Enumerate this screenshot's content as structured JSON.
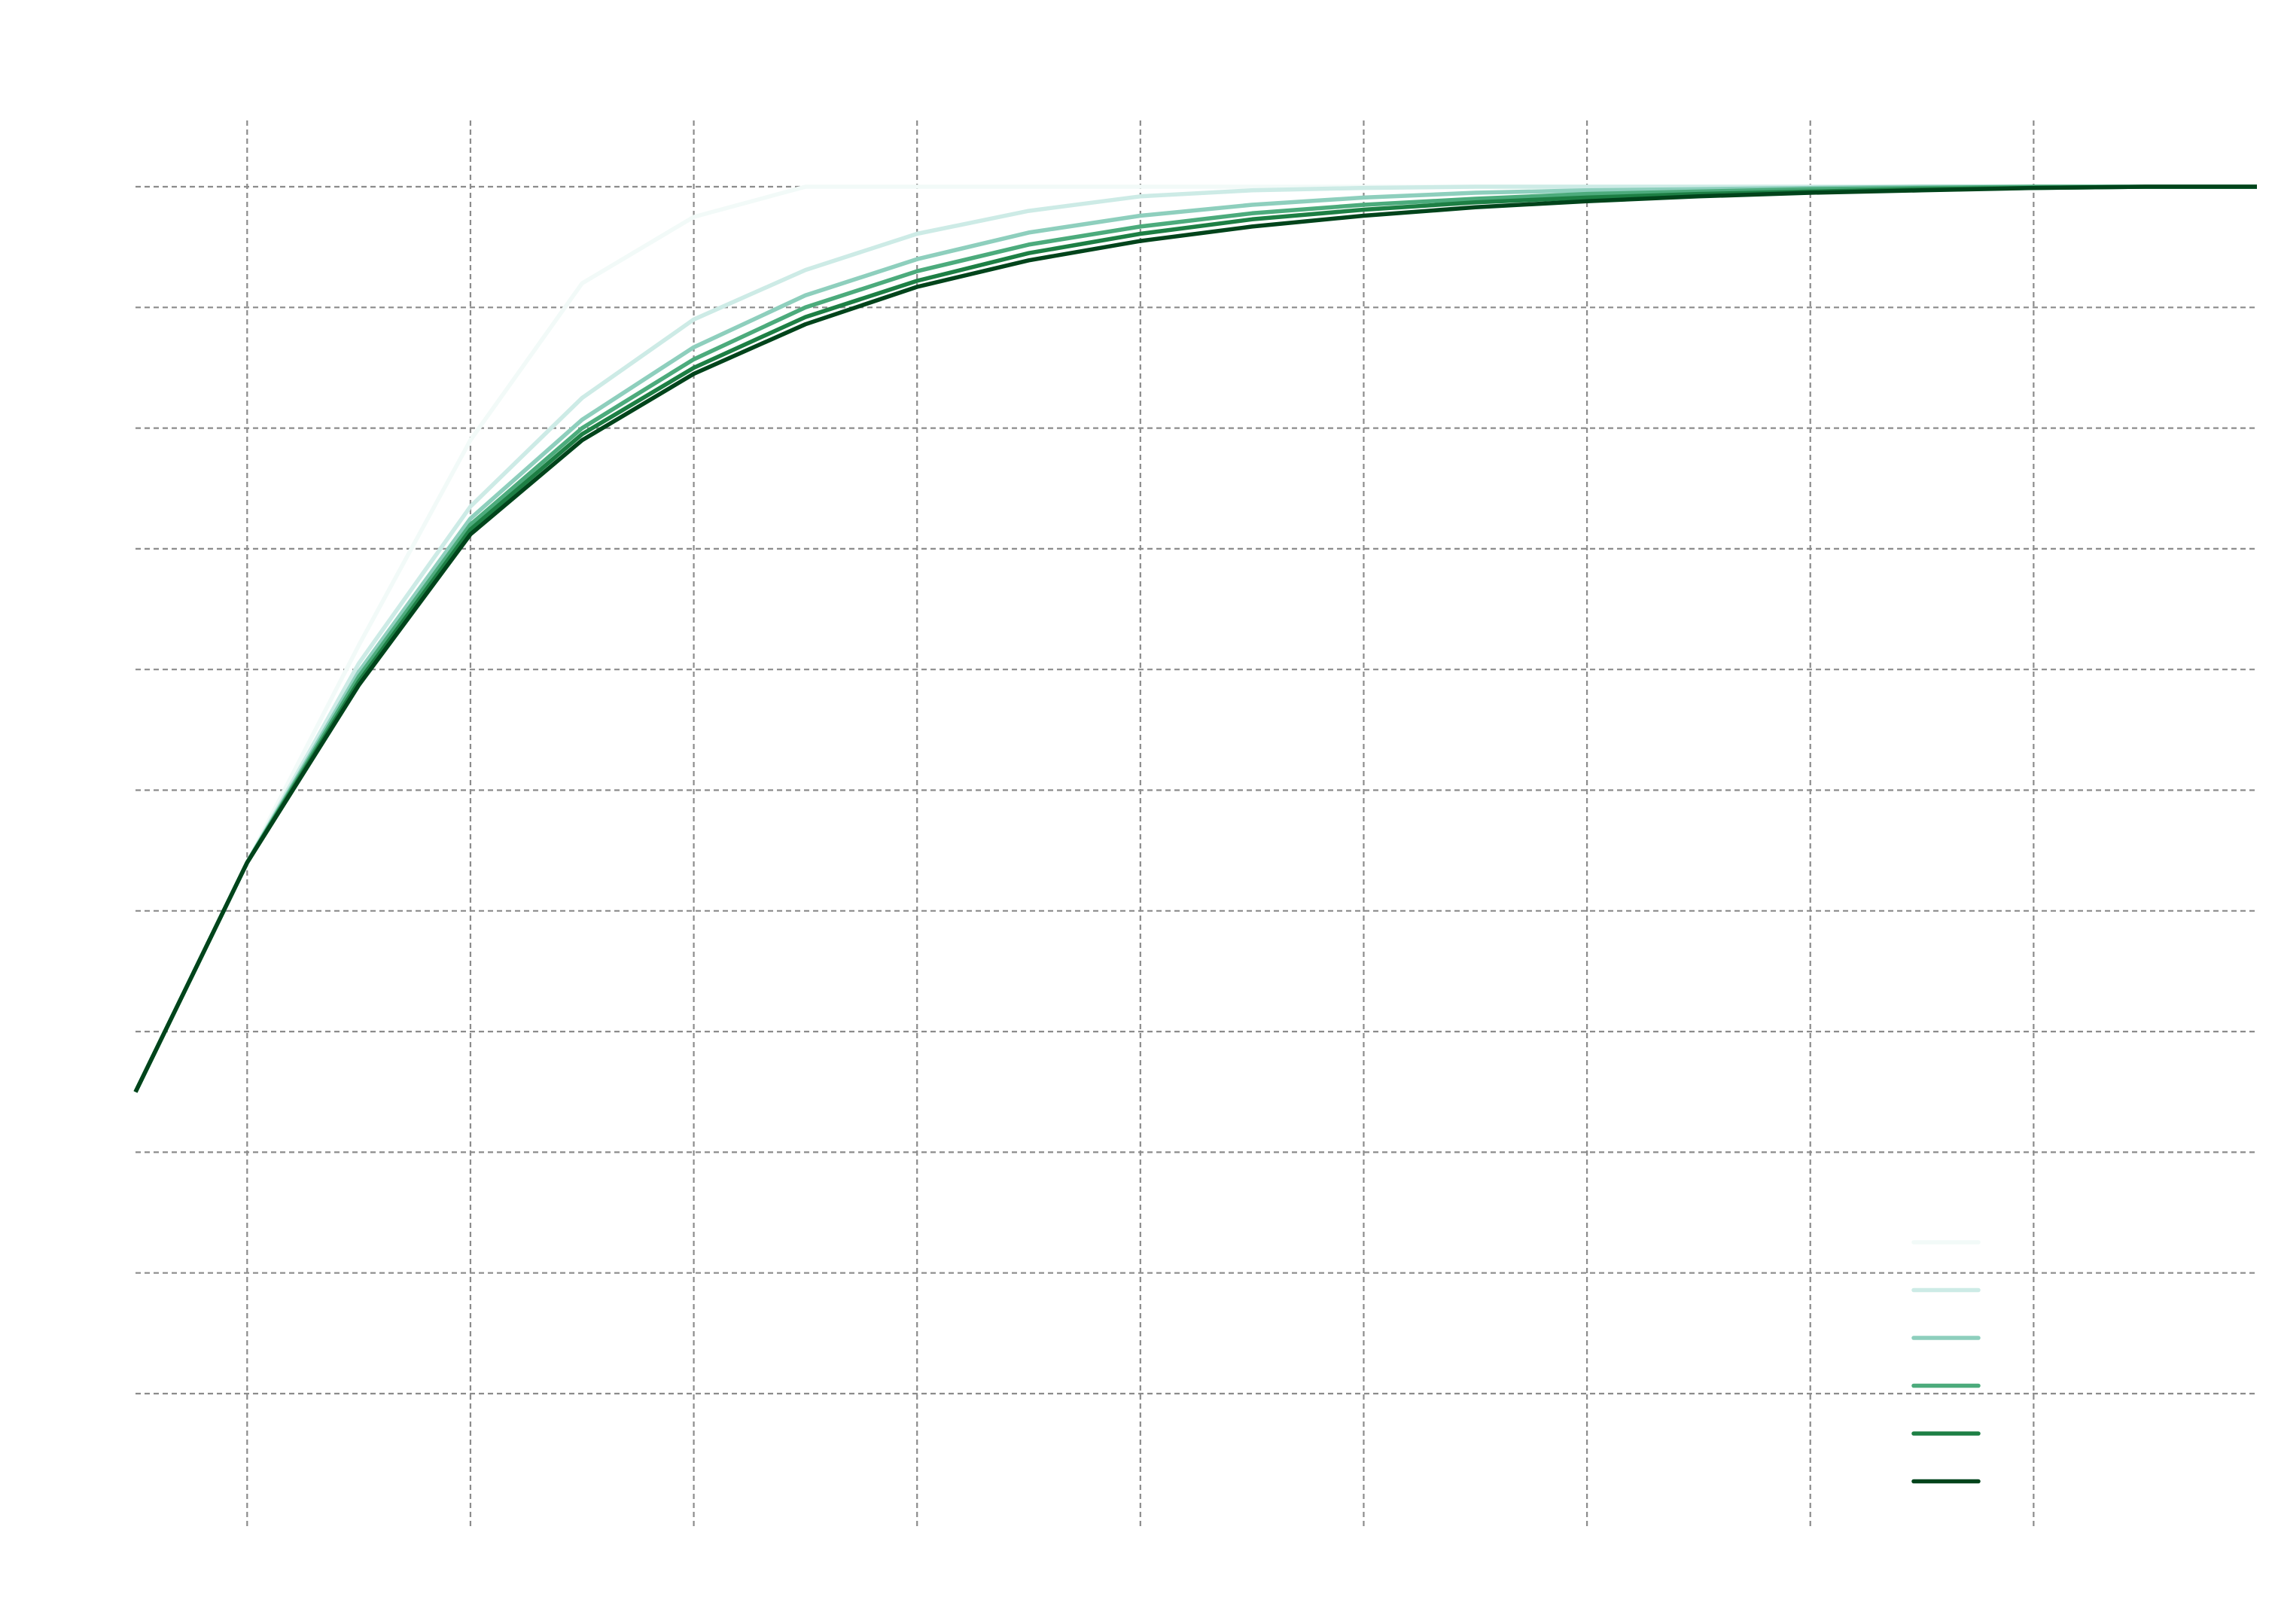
{
  "chart_data": {
    "type": "line",
    "title": "",
    "xlabel": "",
    "ylabel": "",
    "xlim": [
      0,
      19
    ],
    "ylim": [
      0.0,
      1.0
    ],
    "grid": true,
    "legend_position": "bottom-right",
    "x": [
      0,
      1,
      2,
      3,
      4,
      5,
      6,
      7,
      8,
      9,
      10,
      11,
      12,
      13,
      14,
      15,
      16,
      17,
      18,
      19
    ],
    "series": [
      {
        "color": "#f2faf8",
        "values": [
          0.25,
          0.44,
          0.62,
          0.79,
          0.92,
          0.975,
          1.0,
          1.0,
          1.0,
          1.0,
          1.0,
          1.0,
          1.0,
          1.0,
          1.0,
          1.0,
          1.0,
          1.0,
          1.0,
          1.0
        ]
      },
      {
        "color": "#cdebe6",
        "values": [
          0.25,
          0.44,
          0.605,
          0.735,
          0.825,
          0.89,
          0.931,
          0.961,
          0.98,
          0.992,
          0.997,
          0.999,
          1.0,
          1.0,
          1.0,
          1.0,
          1.0,
          1.0,
          1.0,
          1.0
        ]
      },
      {
        "color": "#8ecfbd",
        "values": [
          0.25,
          0.44,
          0.598,
          0.725,
          0.807,
          0.867,
          0.91,
          0.94,
          0.962,
          0.976,
          0.985,
          0.991,
          0.995,
          0.997,
          0.998,
          0.999,
          1.0,
          1.0,
          1.0,
          1.0
        ]
      },
      {
        "color": "#4cab7c",
        "values": [
          0.25,
          0.44,
          0.594,
          0.72,
          0.8,
          0.857,
          0.9,
          0.93,
          0.952,
          0.967,
          0.978,
          0.985,
          0.99,
          0.994,
          0.996,
          0.998,
          0.999,
          1.0,
          1.0,
          1.0
        ]
      },
      {
        "color": "#1d7f44",
        "values": [
          0.25,
          0.44,
          0.59,
          0.716,
          0.795,
          0.85,
          0.892,
          0.922,
          0.945,
          0.961,
          0.973,
          0.981,
          0.987,
          0.991,
          0.994,
          0.996,
          0.998,
          0.999,
          1.0,
          1.0
        ]
      },
      {
        "color": "#00441b",
        "values": [
          0.25,
          0.44,
          0.587,
          0.712,
          0.79,
          0.845,
          0.886,
          0.917,
          0.939,
          0.955,
          0.967,
          0.976,
          0.983,
          0.988,
          0.992,
          0.995,
          0.997,
          0.999,
          1.0,
          1.0
        ]
      }
    ]
  }
}
